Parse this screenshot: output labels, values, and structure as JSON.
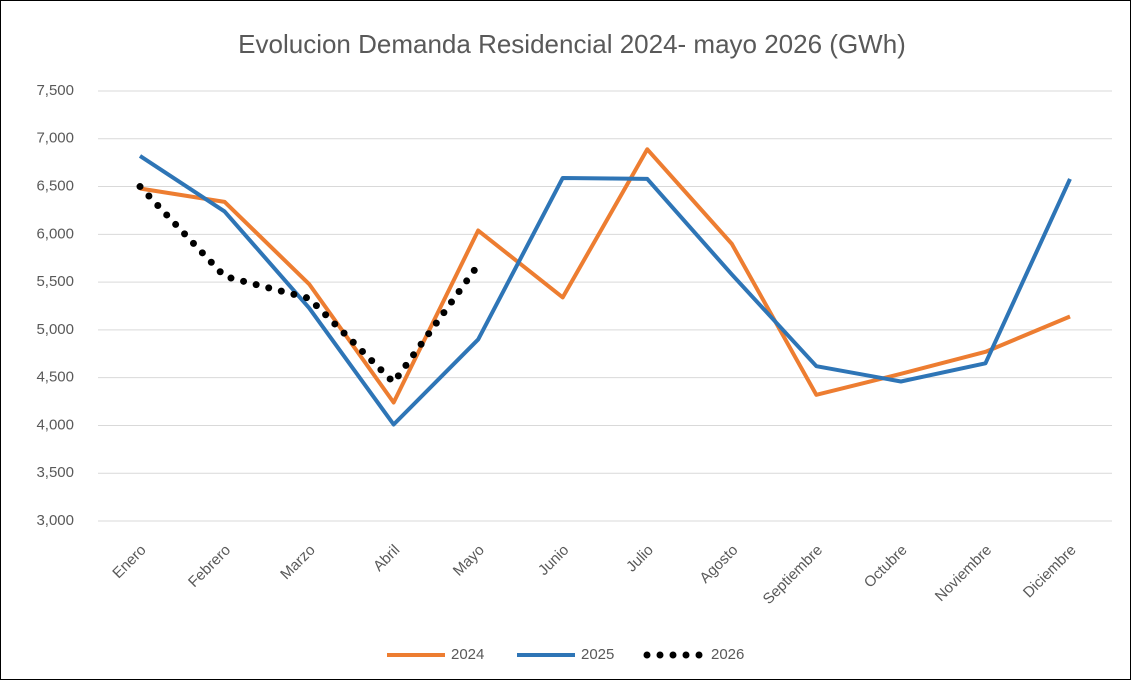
{
  "chart_data": {
    "type": "line",
    "title": "Evolucion Demanda Residencial 2024- mayo 2026 (GWh)",
    "categories": [
      "Enero",
      "Febrero",
      "Marzo",
      "Abril",
      "Mayo",
      "Junio",
      "Julio",
      "Agosto",
      "Septiembre",
      "Octubre",
      "Noviembre",
      "Diciembre"
    ],
    "series": [
      {
        "name": "2024",
        "color": "#ed7d31",
        "dash": "solid",
        "values": [
          6480,
          6340,
          5480,
          4240,
          6040,
          5340,
          6890,
          5900,
          4320,
          4540,
          4770,
          5140
        ]
      },
      {
        "name": "2025",
        "color": "#2e75b6",
        "dash": "solid",
        "values": [
          6820,
          6240,
          5230,
          4010,
          4900,
          6590,
          6580,
          5580,
          4620,
          4460,
          4650,
          6580
        ]
      },
      {
        "name": "2026",
        "color": "#000000",
        "dash": "dotted",
        "values": [
          6500,
          5560,
          5330,
          4450,
          5680,
          null,
          null,
          null,
          null,
          null,
          null,
          null
        ]
      }
    ],
    "ylim": [
      3000,
      7500
    ],
    "yticks": [
      {
        "value": 3000,
        "label": "3,000"
      },
      {
        "value": 3500,
        "label": "3,500"
      },
      {
        "value": 4000,
        "label": "4,000"
      },
      {
        "value": 4500,
        "label": "4,500"
      },
      {
        "value": 5000,
        "label": "5,000"
      },
      {
        "value": 5500,
        "label": "5,500"
      },
      {
        "value": 6000,
        "label": "6,000"
      },
      {
        "value": 6500,
        "label": "6,500"
      },
      {
        "value": 7000,
        "label": "7,000"
      },
      {
        "value": 7500,
        "label": "7,500"
      }
    ],
    "grid": true,
    "legend": "bottom"
  }
}
